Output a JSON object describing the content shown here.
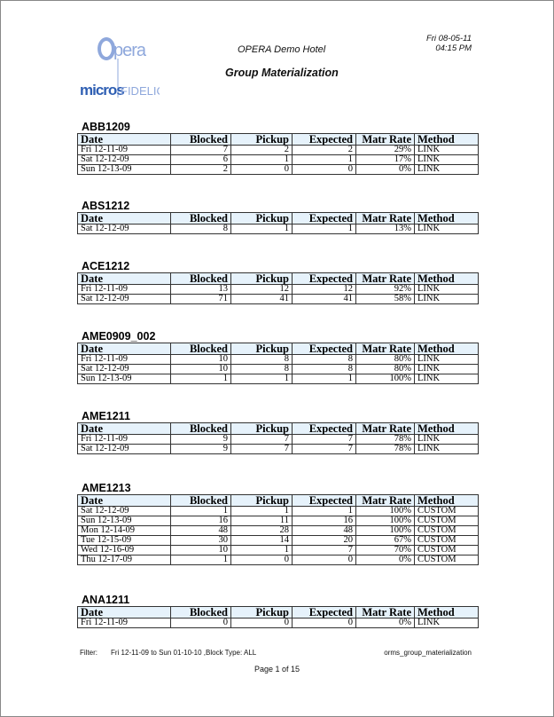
{
  "header": {
    "logo_text": "Opera micros FIDELIO",
    "hotel": "OPERA Demo Hotel",
    "title": "Group Materialization",
    "date": "Fri 08-05-11",
    "time": "04:15 PM"
  },
  "columns": [
    "Date",
    "Blocked",
    "Pickup",
    "Expected",
    "Matr Rate",
    "Method"
  ],
  "groups": [
    {
      "name": "ABB1209",
      "rows": [
        [
          "Fri 12-11-09",
          "7",
          "2",
          "2",
          "29%",
          "LINK"
        ],
        [
          "Sat 12-12-09",
          "6",
          "1",
          "1",
          "17%",
          "LINK"
        ],
        [
          "Sun 12-13-09",
          "2",
          "0",
          "0",
          "0%",
          "LINK"
        ]
      ]
    },
    {
      "name": "ABS1212",
      "rows": [
        [
          "Sat 12-12-09",
          "8",
          "1",
          "1",
          "13%",
          "LINK"
        ]
      ]
    },
    {
      "name": "ACE1212",
      "rows": [
        [
          "Fri 12-11-09",
          "13",
          "12",
          "12",
          "92%",
          "LINK"
        ],
        [
          "Sat 12-12-09",
          "71",
          "41",
          "41",
          "58%",
          "LINK"
        ]
      ]
    },
    {
      "name": "AME0909_002",
      "rows": [
        [
          "Fri 12-11-09",
          "10",
          "8",
          "8",
          "80%",
          "LINK"
        ],
        [
          "Sat 12-12-09",
          "10",
          "8",
          "8",
          "80%",
          "LINK"
        ],
        [
          "Sun 12-13-09",
          "1",
          "1",
          "1",
          "100%",
          "LINK"
        ]
      ]
    },
    {
      "name": "AME1211",
      "rows": [
        [
          "Fri 12-11-09",
          "9",
          "7",
          "7",
          "78%",
          "LINK"
        ],
        [
          "Sat 12-12-09",
          "9",
          "7",
          "7",
          "78%",
          "LINK"
        ]
      ]
    },
    {
      "name": "AME1213",
      "rows": [
        [
          "Sat 12-12-09",
          "1",
          "1",
          "1",
          "100%",
          "CUSTOM"
        ],
        [
          "Sun 12-13-09",
          "16",
          "11",
          "16",
          "100%",
          "CUSTOM"
        ],
        [
          "Mon 12-14-09",
          "48",
          "28",
          "48",
          "100%",
          "CUSTOM"
        ],
        [
          "Tue 12-15-09",
          "30",
          "14",
          "20",
          "67%",
          "CUSTOM"
        ],
        [
          "Wed 12-16-09",
          "10",
          "1",
          "7",
          "70%",
          "CUSTOM"
        ],
        [
          "Thu 12-17-09",
          "1",
          "0",
          "0",
          "0%",
          "CUSTOM"
        ]
      ]
    },
    {
      "name": "ANA1211",
      "rows": [
        [
          "Fri 12-11-09",
          "0",
          "0",
          "0",
          "0%",
          "LINK"
        ]
      ]
    }
  ],
  "footer": {
    "filter_label": "Filter:",
    "filter_value": "Fri 12-11-09 to Sun 01-10-10 ,Block Type: ALL",
    "report_name": "orms_group_materialization",
    "page": "Page 1 of 15"
  },
  "colors": {
    "header_bg": "#e6f2fb",
    "logo_blue": "#2f5fb3"
  }
}
